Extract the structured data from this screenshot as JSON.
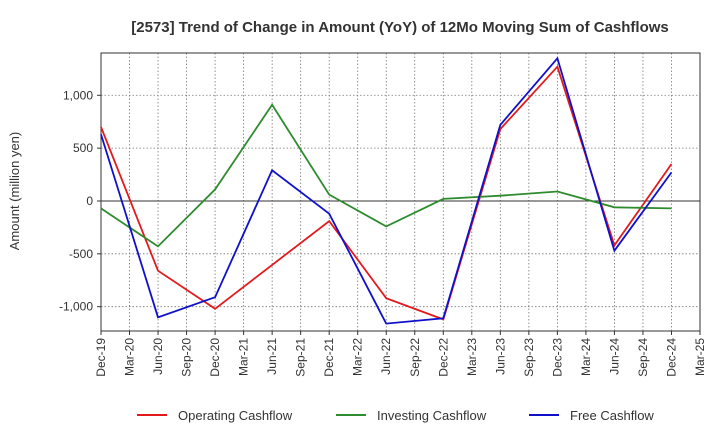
{
  "chart_data": {
    "type": "line",
    "title": "[2573]  Trend of Change in Amount (YoY) of 12Mo Moving Sum of Cashflows",
    "xlabel": "",
    "ylabel": "Amount (million yen)",
    "ylim": [
      -1230,
      1400
    ],
    "yticks": [
      1000,
      500,
      0,
      -500,
      -1000
    ],
    "ytick_labels": [
      "1,000",
      "500",
      "0",
      "-500",
      "-1,000"
    ],
    "x": [
      "Dec-19",
      "Mar-20",
      "Jun-20",
      "Sep-20",
      "Dec-20",
      "Mar-21",
      "Jun-21",
      "Sep-21",
      "Dec-21",
      "Mar-22",
      "Jun-22",
      "Sep-22",
      "Dec-22",
      "Mar-23",
      "Jun-23",
      "Sep-23",
      "Dec-23",
      "Mar-24",
      "Jun-24",
      "Sep-24",
      "Dec-24",
      "Mar-25"
    ],
    "grid": true,
    "legend_position": "bottom",
    "series": [
      {
        "name": "Operating Cashflow",
        "color": "#e31a1c",
        "values": [
          700,
          null,
          -660,
          null,
          -1020,
          null,
          null,
          null,
          -190,
          null,
          -920,
          null,
          -1120,
          null,
          680,
          null,
          1270,
          null,
          -420,
          null,
          350,
          null
        ]
      },
      {
        "name": "Investing Cashflow",
        "color": "#2e8b2e",
        "values": [
          -70,
          null,
          -430,
          null,
          110,
          null,
          910,
          null,
          60,
          null,
          -240,
          null,
          20,
          null,
          50,
          null,
          90,
          null,
          -60,
          null,
          -70,
          null
        ]
      },
      {
        "name": "Free Cashflow",
        "color": "#1010cc",
        "values": [
          630,
          null,
          -1100,
          null,
          -910,
          null,
          290,
          null,
          -120,
          null,
          -1160,
          null,
          -1110,
          null,
          720,
          null,
          1350,
          null,
          -470,
          null,
          270,
          null
        ]
      }
    ]
  }
}
